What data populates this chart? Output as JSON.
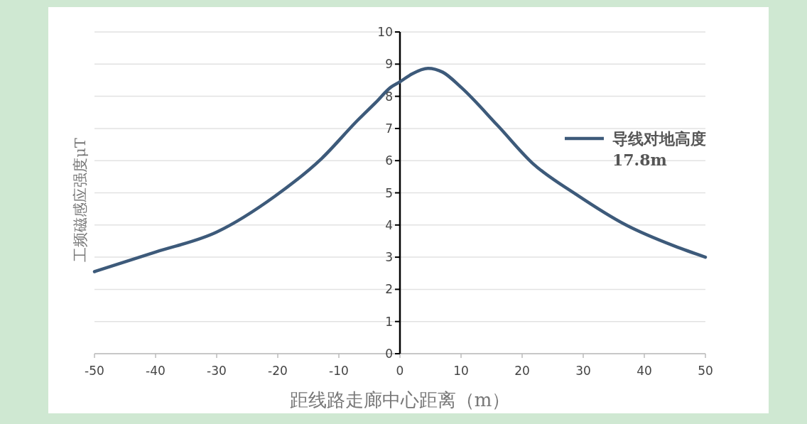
{
  "chart_data": {
    "type": "line",
    "xlabel": "距线路走廊中心距离（m）",
    "ylabel": "工频磁感应强度μT",
    "xlim": [
      -50,
      50
    ],
    "xticks": [
      -50,
      -40,
      -30,
      -20,
      -10,
      0,
      10,
      20,
      30,
      40,
      50
    ],
    "ylim": [
      0,
      10
    ],
    "yticks": [
      0,
      1,
      2,
      3,
      4,
      5,
      6,
      7,
      8,
      9,
      10
    ],
    "grid": "y",
    "legend": "right",
    "series": [
      {
        "name": "导线对地高度17.8m",
        "color": "#3d5a7a",
        "x": [
          -50,
          -40,
          -30,
          -20.5,
          -12.8,
          -7,
          -4,
          -1.5,
          0,
          2,
          4.6,
          7,
          10,
          16,
          21.7,
          28.7,
          37,
          45,
          50
        ],
        "values": [
          2.55,
          3.16,
          3.78,
          4.89,
          6.07,
          7.24,
          7.8,
          8.28,
          8.45,
          8.7,
          8.87,
          8.75,
          8.28,
          7.09,
          5.92,
          4.97,
          4.0,
          3.34,
          3.0
        ]
      }
    ]
  }
}
